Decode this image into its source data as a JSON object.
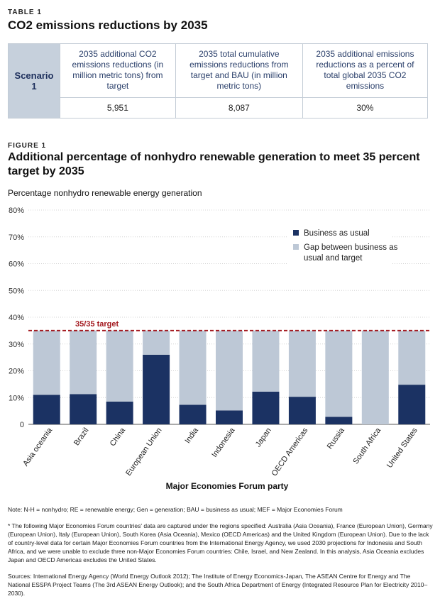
{
  "table": {
    "label": "TABLE 1",
    "title": "CO2 emissions reductions by 2035",
    "row_label": "Scenario 1",
    "headers": [
      "2035 additional CO2 emissions reductions (in million metric tons) from target",
      "2035 total cumulative emissions reductions from target and BAU (in million metric tons)",
      "2035 additional emissions reductions as a percent of total global 2035 CO2 emissions"
    ],
    "values": [
      "5,951",
      "8,087",
      "30%"
    ]
  },
  "figure": {
    "label": "FIGURE 1",
    "title": "Additional percentage of nonhydro renewable generation to meet 35 percent target by 2035"
  },
  "chart_data": {
    "type": "bar",
    "stacked": true,
    "title": "Additional percentage of nonhydro renewable generation to meet 35 percent target by 2035",
    "ylabel": "Percentage nonhydro renewable energy generation",
    "xlabel": "Major Economies Forum party",
    "ylim": [
      0,
      80
    ],
    "yticks": [
      0,
      10,
      20,
      30,
      40,
      50,
      60,
      70,
      80
    ],
    "ytick_labels": [
      "0",
      "10%",
      "20%",
      "30%",
      "40%",
      "50%",
      "60%",
      "70%",
      "80%"
    ],
    "categories": [
      "Asia oceania",
      "Brazil",
      "China",
      "European Union",
      "India",
      "Indonesia",
      "Japan",
      "OECD Americas",
      "Russia",
      "South Africa",
      "United States"
    ],
    "series": [
      {
        "name": "Business as usual",
        "color": "#1b3263",
        "values": [
          11,
          11.3,
          8.5,
          26,
          7.3,
          5.2,
          12.2,
          10.3,
          2.8,
          0,
          14.8
        ]
      },
      {
        "name": "Gap between business as usual and target",
        "color": "#bdc8d6",
        "values": [
          24,
          23.7,
          26.5,
          9,
          27.7,
          29.8,
          22.8,
          24.7,
          32.2,
          35,
          20.2
        ]
      }
    ],
    "target": {
      "value": 35,
      "label": "35/35 target",
      "color": "#a3191f"
    },
    "legend": [
      "Business as usual",
      "Gap between business as usual and target"
    ],
    "legend_position": "top-right"
  },
  "notes": {
    "note": "Note: N-H = nonhydro; RE = renewable energy; Gen = generation; BAU = business as usual; MEF = Major Economies Forum",
    "footnote": "* The following Major Economies Forum countries' data are captured under the regions specified: Australia (Asia Oceania), France (European Union), Germany (European Union), Italy (European Union), South Korea (Asia Oceania), Mexico (OECD Americas) and the United Kingdom (European Union). Due to the lack of country-level data for certain Major Economies Forum countries from the International Energy Agency, we used 2030 projections for Indonesia and South Africa, and we were unable to exclude three non-Major Economies Forum countries: Chile, Israel, and New Zealand. In this analysis, Asia Oceania excludes Japan and OECD Americas excludes the United States.",
    "sources": "Sources: International Energy Agency (World Energy Outlook 2012); The Institute of Energy Economics-Japan, The ASEAN Centre for Energy and The National ESSPA Project Teams (The 3rd ASEAN Energy Outlook); and the South Africa Department of Energy (Integrated Resource Plan for Electricity 2010–2030)."
  }
}
